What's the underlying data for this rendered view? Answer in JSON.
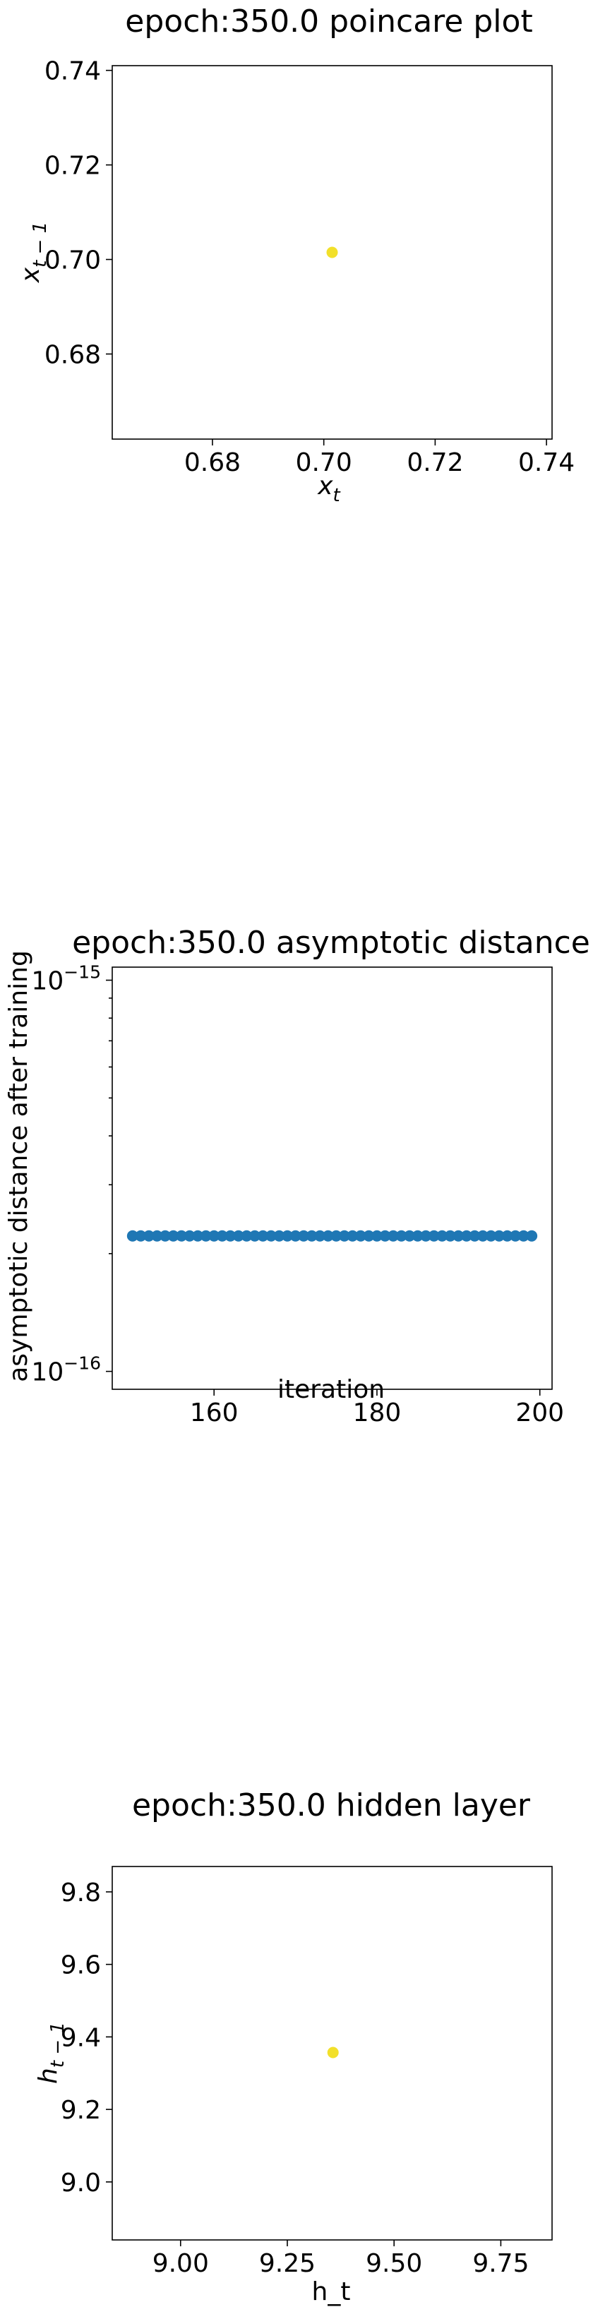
{
  "chart_data": [
    {
      "type": "scatter",
      "title": "epoch:350.0 poincare plot",
      "xlabel": "x_t",
      "ylabel": "x_{t-1}",
      "xlim": [
        0.662,
        0.741
      ],
      "ylim": [
        0.662,
        0.741
      ],
      "x_ticks": [
        "0.68",
        "0.70",
        "0.72",
        "0.74"
      ],
      "y_ticks": [
        "0.68",
        "0.70",
        "0.72",
        "0.74"
      ],
      "points": [
        {
          "x": 0.7015,
          "y": 0.7015
        }
      ],
      "marker_color": "#f2e02a",
      "grid": false
    },
    {
      "type": "scatter",
      "title": "epoch:350.0 asymptotic distance",
      "xlabel": "iteration",
      "ylabel": "asymptotic distance after training",
      "xlim": [
        147.5,
        201.5
      ],
      "ylim": [
        9e-17,
        1.08e-15
      ],
      "yscale": "log",
      "x_ticks": [
        "160",
        "180",
        "200"
      ],
      "y_ticks": [
        "10^-16",
        "10^-15"
      ],
      "x": [
        150,
        151,
        152,
        153,
        154,
        155,
        156,
        157,
        158,
        159,
        160,
        161,
        162,
        163,
        164,
        165,
        166,
        167,
        168,
        169,
        170,
        171,
        172,
        173,
        174,
        175,
        176,
        177,
        178,
        179,
        180,
        181,
        182,
        183,
        184,
        185,
        186,
        187,
        188,
        189,
        190,
        191,
        192,
        193,
        194,
        195,
        196,
        197,
        198,
        199
      ],
      "y": [
        2.22e-16,
        2.22e-16,
        2.22e-16,
        2.22e-16,
        2.22e-16,
        2.22e-16,
        2.22e-16,
        2.22e-16,
        2.22e-16,
        2.22e-16,
        2.22e-16,
        2.22e-16,
        2.22e-16,
        2.22e-16,
        2.22e-16,
        2.22e-16,
        2.22e-16,
        2.22e-16,
        2.22e-16,
        2.22e-16,
        2.22e-16,
        2.22e-16,
        2.22e-16,
        2.22e-16,
        2.22e-16,
        2.22e-16,
        2.22e-16,
        2.22e-16,
        2.22e-16,
        2.22e-16,
        2.22e-16,
        2.22e-16,
        2.22e-16,
        2.22e-16,
        2.22e-16,
        2.22e-16,
        2.22e-16,
        2.22e-16,
        2.22e-16,
        2.22e-16,
        2.22e-16,
        2.22e-16,
        2.22e-16,
        2.22e-16,
        2.22e-16,
        2.22e-16,
        2.22e-16,
        2.22e-16,
        2.22e-16,
        2.22e-16
      ],
      "marker_color": "#1f77b4",
      "grid": false
    },
    {
      "type": "scatter",
      "title": "epoch:350.0 hidden layer",
      "xlabel": "h_t",
      "ylabel": "h_{t-1}",
      "xlim": [
        8.84,
        9.87
      ],
      "ylim": [
        8.84,
        9.87
      ],
      "x_ticks": [
        "9.00",
        "9.25",
        "9.50",
        "9.75"
      ],
      "y_ticks": [
        "9.0",
        "9.2",
        "9.4",
        "9.6",
        "9.8"
      ],
      "points": [
        {
          "x": 9.357,
          "y": 9.357
        }
      ],
      "marker_color": "#f2e02a",
      "grid": false
    }
  ]
}
